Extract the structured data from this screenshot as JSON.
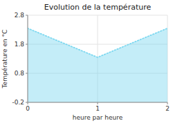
{
  "chart_data": {
    "type": "area",
    "title": "Evolution de la température",
    "x_label": "heure par heure",
    "y_label": "Température en °C",
    "x": [
      0,
      1,
      2
    ],
    "values": [
      2.35,
      1.35,
      2.35
    ],
    "xlim": [
      0,
      2
    ],
    "ylim": [
      -0.2,
      2.8
    ],
    "xticks": [
      0,
      1,
      2
    ],
    "yticks": [
      -0.2,
      0.8,
      1.8,
      2.8
    ],
    "color": "#7dd8f0",
    "line_style": "dotted",
    "grid": true
  }
}
